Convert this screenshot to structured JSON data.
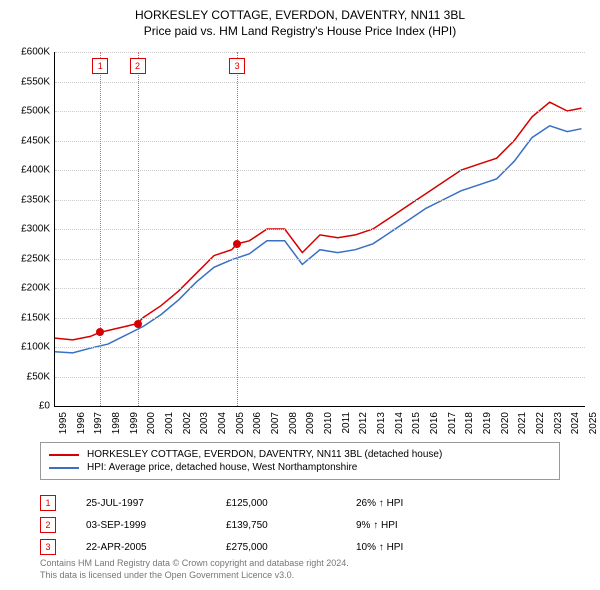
{
  "title_line1": "HORKESLEY COTTAGE, EVERDON, DAVENTRY, NN11 3BL",
  "title_line2": "Price paid vs. HM Land Registry's House Price Index (HPI)",
  "chart": {
    "type": "line",
    "background_color": "#ffffff",
    "grid_color": "#cccccc",
    "axis_color": "#000000",
    "xlim": [
      1995,
      2025
    ],
    "ylim": [
      0,
      600000
    ],
    "ytick_step": 50000,
    "ytick_prefix": "£",
    "yticks": [
      "£0",
      "£50K",
      "£100K",
      "£150K",
      "£200K",
      "£250K",
      "£300K",
      "£350K",
      "£400K",
      "£450K",
      "£500K",
      "£550K",
      "£600K"
    ],
    "xticks": [
      1995,
      1996,
      1997,
      1998,
      1999,
      2000,
      2001,
      2002,
      2003,
      2004,
      2005,
      2006,
      2007,
      2008,
      2009,
      2010,
      2011,
      2012,
      2013,
      2014,
      2015,
      2016,
      2017,
      2018,
      2019,
      2020,
      2021,
      2022,
      2023,
      2024,
      2025
    ],
    "price_color": "#d50000",
    "hpi_color": "#3a6fc4",
    "line_width": 1.5,
    "price_series": [
      {
        "year": 1995.0,
        "value": 115000
      },
      {
        "year": 1996.0,
        "value": 112000
      },
      {
        "year": 1997.0,
        "value": 118000
      },
      {
        "year": 1997.56,
        "value": 125000
      },
      {
        "year": 1998.0,
        "value": 128000
      },
      {
        "year": 1999.0,
        "value": 135000
      },
      {
        "year": 1999.67,
        "value": 139750
      },
      {
        "year": 2000.0,
        "value": 150000
      },
      {
        "year": 2001.0,
        "value": 170000
      },
      {
        "year": 2002.0,
        "value": 195000
      },
      {
        "year": 2003.0,
        "value": 225000
      },
      {
        "year": 2004.0,
        "value": 255000
      },
      {
        "year": 2005.0,
        "value": 265000
      },
      {
        "year": 2005.31,
        "value": 275000
      },
      {
        "year": 2006.0,
        "value": 280000
      },
      {
        "year": 2007.0,
        "value": 300000
      },
      {
        "year": 2008.0,
        "value": 300000
      },
      {
        "year": 2009.0,
        "value": 260000
      },
      {
        "year": 2010.0,
        "value": 290000
      },
      {
        "year": 2011.0,
        "value": 285000
      },
      {
        "year": 2012.0,
        "value": 290000
      },
      {
        "year": 2013.0,
        "value": 300000
      },
      {
        "year": 2014.0,
        "value": 320000
      },
      {
        "year": 2015.0,
        "value": 340000
      },
      {
        "year": 2016.0,
        "value": 360000
      },
      {
        "year": 2017.0,
        "value": 380000
      },
      {
        "year": 2018.0,
        "value": 400000
      },
      {
        "year": 2019.0,
        "value": 410000
      },
      {
        "year": 2020.0,
        "value": 420000
      },
      {
        "year": 2021.0,
        "value": 450000
      },
      {
        "year": 2022.0,
        "value": 490000
      },
      {
        "year": 2023.0,
        "value": 515000
      },
      {
        "year": 2024.0,
        "value": 500000
      },
      {
        "year": 2024.8,
        "value": 505000
      }
    ],
    "hpi_series": [
      {
        "year": 1995.0,
        "value": 92000
      },
      {
        "year": 1996.0,
        "value": 90000
      },
      {
        "year": 1997.0,
        "value": 98000
      },
      {
        "year": 1998.0,
        "value": 105000
      },
      {
        "year": 1999.0,
        "value": 120000
      },
      {
        "year": 2000.0,
        "value": 135000
      },
      {
        "year": 2001.0,
        "value": 155000
      },
      {
        "year": 2002.0,
        "value": 180000
      },
      {
        "year": 2003.0,
        "value": 210000
      },
      {
        "year": 2004.0,
        "value": 235000
      },
      {
        "year": 2005.0,
        "value": 248000
      },
      {
        "year": 2006.0,
        "value": 258000
      },
      {
        "year": 2007.0,
        "value": 280000
      },
      {
        "year": 2008.0,
        "value": 280000
      },
      {
        "year": 2009.0,
        "value": 240000
      },
      {
        "year": 2010.0,
        "value": 265000
      },
      {
        "year": 2011.0,
        "value": 260000
      },
      {
        "year": 2012.0,
        "value": 265000
      },
      {
        "year": 2013.0,
        "value": 275000
      },
      {
        "year": 2014.0,
        "value": 295000
      },
      {
        "year": 2015.0,
        "value": 315000
      },
      {
        "year": 2016.0,
        "value": 335000
      },
      {
        "year": 2017.0,
        "value": 350000
      },
      {
        "year": 2018.0,
        "value": 365000
      },
      {
        "year": 2019.0,
        "value": 375000
      },
      {
        "year": 2020.0,
        "value": 385000
      },
      {
        "year": 2021.0,
        "value": 415000
      },
      {
        "year": 2022.0,
        "value": 455000
      },
      {
        "year": 2023.0,
        "value": 475000
      },
      {
        "year": 2024.0,
        "value": 465000
      },
      {
        "year": 2024.8,
        "value": 470000
      }
    ],
    "sale_markers": [
      {
        "n": "1",
        "year": 1997.56,
        "value": 125000
      },
      {
        "n": "2",
        "year": 1999.67,
        "value": 139750
      },
      {
        "n": "3",
        "year": 2005.31,
        "value": 275000
      }
    ],
    "marker_color": "#d50000",
    "marker_radius": 4
  },
  "legend": {
    "series1_label": "HORKESLEY COTTAGE, EVERDON, DAVENTRY, NN11 3BL (detached house)",
    "series2_label": "HPI: Average price, detached house, West Northamptonshire"
  },
  "sales": [
    {
      "n": "1",
      "date": "25-JUL-1997",
      "price": "£125,000",
      "delta": "26% ↑ HPI"
    },
    {
      "n": "2",
      "date": "03-SEP-1999",
      "price": "£139,750",
      "delta": "9% ↑ HPI"
    },
    {
      "n": "3",
      "date": "22-APR-2005",
      "price": "£275,000",
      "delta": "10% ↑ HPI"
    }
  ],
  "footer_line1": "Contains HM Land Registry data © Crown copyright and database right 2024.",
  "footer_line2": "This data is licensed under the Open Government Licence v3.0."
}
